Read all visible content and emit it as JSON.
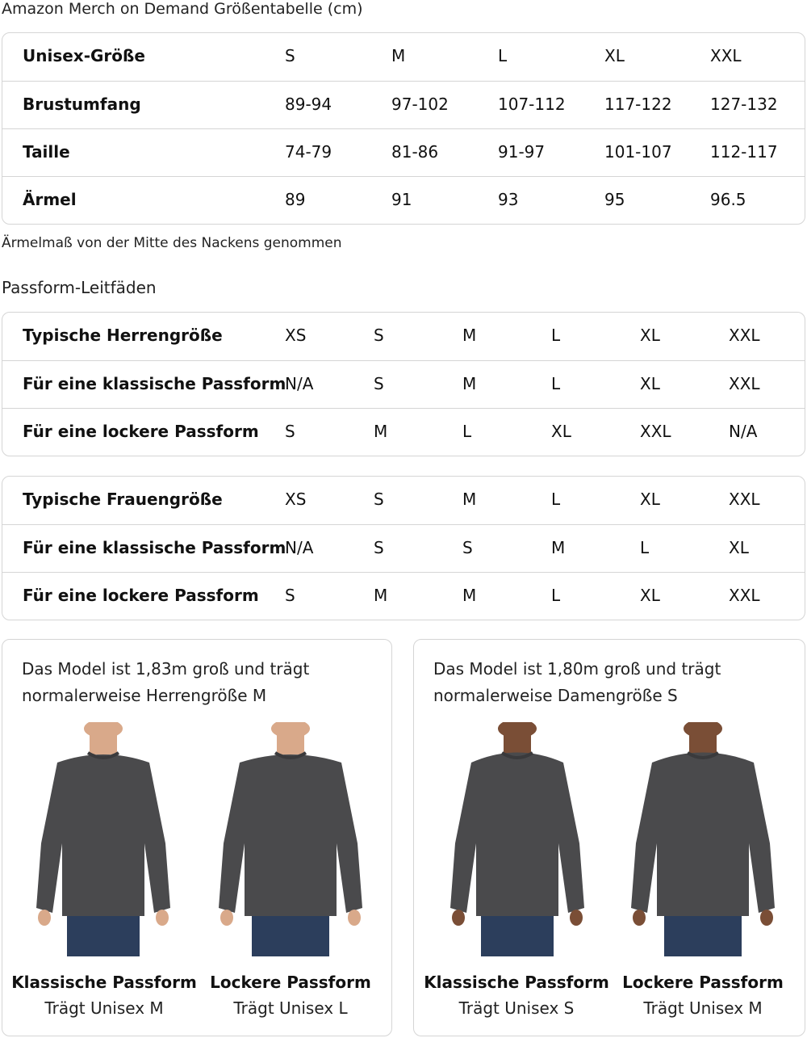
{
  "title": "Amazon Merch on Demand Größentabelle (cm)",
  "size_table": {
    "rows": [
      [
        "Unisex-Größe",
        "S",
        "M",
        "L",
        "XL",
        "XXL"
      ],
      [
        "Brustumfang",
        "89-94",
        "97-102",
        "107-112",
        "117-122",
        "127-132"
      ],
      [
        "Taille",
        "74-79",
        "81-86",
        "91-97",
        "101-107",
        "112-117"
      ],
      [
        "Ärmel",
        "89",
        "91",
        "93",
        "95",
        "96.5"
      ]
    ]
  },
  "note": "Ärmelmaß von der Mitte des Nackens genommen",
  "fit_heading": "Passform-Leitfäden",
  "men_table": {
    "rows": [
      [
        "Typische Herrengröße",
        "XS",
        "S",
        "M",
        "L",
        "XL",
        "XXL"
      ],
      [
        "Für eine klassische Passform",
        "N/A",
        "S",
        "M",
        "L",
        "XL",
        "XXL"
      ],
      [
        "Für eine lockere Passform",
        "S",
        "M",
        "L",
        "XL",
        "XXL",
        "N/A"
      ]
    ]
  },
  "women_table": {
    "rows": [
      [
        "Typische Frauengröße",
        "XS",
        "S",
        "M",
        "L",
        "XL",
        "XXL"
      ],
      [
        "Für eine klassische Passform",
        "N/A",
        "S",
        "S",
        "M",
        "L",
        "XL"
      ],
      [
        "Für eine lockere Passform",
        "S",
        "M",
        "M",
        "L",
        "XL",
        "XXL"
      ]
    ]
  },
  "cards": [
    {
      "caption": [
        "Das Model ist 1,83m groß und trägt",
        "normalerweise Herrengröße M"
      ],
      "figures": [
        {
          "fit": "Klassische Passform",
          "size": "Trägt Unisex M"
        },
        {
          "fit": "Lockere Passform",
          "size": "Trägt Unisex L"
        }
      ]
    },
    {
      "caption": [
        "Das Model ist 1,80m groß und trägt",
        "normalerweise Damengröße S"
      ],
      "figures": [
        {
          "fit": "Klassische Passform",
          "size": "Trägt Unisex S"
        },
        {
          "fit": "Lockere Passform",
          "size": "Trägt Unisex M"
        }
      ]
    }
  ],
  "colors": {
    "border": "#d5d5d5",
    "sweater": "#4a4a4c",
    "jeans": "#2c3e5c",
    "skin_men": "#d9a98a",
    "skin_women": "#7a4e36"
  }
}
